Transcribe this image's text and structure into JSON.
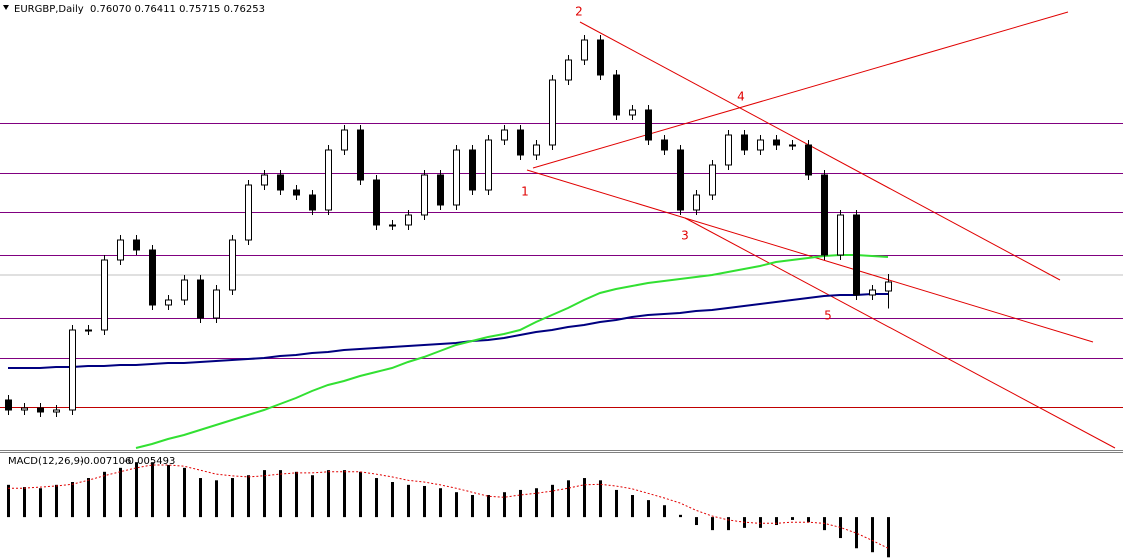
{
  "chart_data": {
    "type": "candlestick",
    "symbol": "EURGBP,Daily",
    "quote": "0.76070 0.76411 0.75715 0.76253",
    "ylim": [
      0.7289,
      0.8189
    ],
    "open": [
      0.7389,
      0.7369,
      0.7373,
      0.7365,
      0.7369,
      0.7529,
      0.7529,
      0.7669,
      0.7709,
      0.7689,
      0.7579,
      0.7589,
      0.7629,
      0.7553,
      0.7609,
      0.7709,
      0.7819,
      0.7839,
      0.7809,
      0.7799,
      0.7769,
      0.7889,
      0.7929,
      0.7829,
      0.7739,
      0.7739,
      0.7759,
      0.7839,
      0.7779,
      0.7889,
      0.7809,
      0.7909,
      0.7929,
      0.7879,
      0.7899,
      0.8029,
      0.8069,
      0.8109,
      0.8039,
      0.7959,
      0.7969,
      0.7909,
      0.7889,
      0.7769,
      0.7799,
      0.7859,
      0.7919,
      0.7889,
      0.7909,
      0.7899,
      0.7899,
      0.7839,
      0.7679,
      0.7759,
      0.7599,
      0.7607
    ],
    "high": [
      0.7399,
      0.7383,
      0.7383,
      0.7379,
      0.7539,
      0.7539,
      0.7679,
      0.7719,
      0.7719,
      0.7699,
      0.7599,
      0.7639,
      0.7639,
      0.7619,
      0.7719,
      0.7829,
      0.7849,
      0.7849,
      0.7819,
      0.7809,
      0.7899,
      0.7939,
      0.7939,
      0.7839,
      0.7749,
      0.7769,
      0.7849,
      0.7849,
      0.7899,
      0.7899,
      0.7919,
      0.7939,
      0.7939,
      0.7909,
      0.8039,
      0.8079,
      0.8119,
      0.8119,
      0.8049,
      0.7979,
      0.7979,
      0.7919,
      0.7899,
      0.7809,
      0.7869,
      0.7929,
      0.7929,
      0.7919,
      0.7919,
      0.7909,
      0.7909,
      0.7849,
      0.7769,
      0.7769,
      0.7619,
      0.7641
    ],
    "low": [
      0.7359,
      0.7359,
      0.7355,
      0.7355,
      0.7359,
      0.7519,
      0.7519,
      0.7659,
      0.7679,
      0.7569,
      0.7569,
      0.7579,
      0.7543,
      0.7543,
      0.7599,
      0.7699,
      0.7809,
      0.7799,
      0.7789,
      0.7759,
      0.7759,
      0.7879,
      0.7819,
      0.7729,
      0.7729,
      0.7729,
      0.7749,
      0.7769,
      0.7769,
      0.7799,
      0.7799,
      0.7899,
      0.7869,
      0.7869,
      0.7889,
      0.8019,
      0.8059,
      0.8029,
      0.7949,
      0.7949,
      0.7899,
      0.7879,
      0.7759,
      0.7759,
      0.7789,
      0.7849,
      0.7879,
      0.7879,
      0.7889,
      0.7889,
      0.7829,
      0.7669,
      0.7669,
      0.7589,
      0.7589,
      0.7572
    ],
    "close": [
      0.7369,
      0.7373,
      0.7365,
      0.7369,
      0.7529,
      0.7529,
      0.7669,
      0.7709,
      0.7689,
      0.7579,
      0.7589,
      0.7629,
      0.7553,
      0.7609,
      0.7709,
      0.7819,
      0.7839,
      0.7809,
      0.7799,
      0.7769,
      0.7889,
      0.7929,
      0.7829,
      0.7739,
      0.7739,
      0.7759,
      0.7839,
      0.7779,
      0.7889,
      0.7809,
      0.7909,
      0.7929,
      0.7879,
      0.7899,
      0.8029,
      0.8069,
      0.8109,
      0.8039,
      0.7959,
      0.7969,
      0.7909,
      0.7889,
      0.7769,
      0.7799,
      0.7859,
      0.7919,
      0.7889,
      0.7909,
      0.7899,
      0.7899,
      0.7839,
      0.7679,
      0.7759,
      0.7599,
      0.7609,
      0.7625
    ],
    "moving_averages": [
      {
        "color": "#000080",
        "values": [
          0.7453,
          0.7453,
          0.7453,
          0.7455,
          0.7455,
          0.7457,
          0.7457,
          0.7459,
          0.7459,
          0.7461,
          0.7463,
          0.7463,
          0.7465,
          0.7467,
          0.7469,
          0.7471,
          0.7473,
          0.7477,
          0.7479,
          0.7483,
          0.7485,
          0.7489,
          0.7491,
          0.7493,
          0.7495,
          0.7497,
          0.7499,
          0.7501,
          0.7503,
          0.7507,
          0.7509,
          0.7513,
          0.7519,
          0.7525,
          0.7529,
          0.7535,
          0.7539,
          0.7545,
          0.7549,
          0.7555,
          0.7559,
          0.7561,
          0.7563,
          0.7567,
          0.7569,
          0.7573,
          0.7577,
          0.7581,
          0.7585,
          0.7589,
          0.7593,
          0.7597,
          0.7599,
          0.7599,
          0.7601,
          0.7601
        ]
      },
      {
        "color": "#32e032",
        "values": [
          null,
          null,
          null,
          null,
          null,
          null,
          null,
          null,
          0.7293,
          0.7301,
          0.7311,
          0.7319,
          0.7329,
          0.7339,
          0.7349,
          0.7359,
          0.7369,
          0.7381,
          0.7393,
          0.7407,
          0.7419,
          0.7427,
          0.7437,
          0.7445,
          0.7453,
          0.7465,
          0.7475,
          0.7487,
          0.7499,
          0.7507,
          0.7515,
          0.7521,
          0.7529,
          0.7545,
          0.7559,
          0.7573,
          0.7589,
          0.7603,
          0.7611,
          0.7617,
          0.7623,
          0.7627,
          0.7631,
          0.7635,
          0.7639,
          0.7645,
          0.7651,
          0.7657,
          0.7665,
          0.7669,
          0.7673,
          0.7677,
          0.7679,
          0.7679,
          0.7677,
          0.7675
        ]
      }
    ],
    "levels": [
      {
        "value": 0.7943,
        "color": "#800080"
      },
      {
        "value": 0.7843,
        "color": "#800080"
      },
      {
        "value": 0.7765,
        "color": "#800080"
      },
      {
        "value": 0.7679,
        "color": "#800080"
      },
      {
        "value": 0.7553,
        "color": "#800080"
      },
      {
        "value": 0.7473,
        "color": "#800080"
      },
      {
        "value": 0.7375,
        "color": "#c00000"
      }
    ],
    "wave_labels": [
      "1",
      "2",
      "3",
      "4",
      "5"
    ],
    "macd": {
      "label": "MACD(12,26,9)",
      "main_value": "-0.007106",
      "signal_value": "-0.005493",
      "ylim": [
        -0.0074,
        0.0115
      ],
      "histogram": [
        0.0057,
        0.0053,
        0.0051,
        0.0057,
        0.0062,
        0.0069,
        0.008,
        0.0087,
        0.0097,
        0.0097,
        0.0092,
        0.0087,
        0.0069,
        0.0065,
        0.0069,
        0.0074,
        0.0083,
        0.0083,
        0.008,
        0.0074,
        0.0083,
        0.0083,
        0.008,
        0.0069,
        0.0062,
        0.0057,
        0.0055,
        0.0051,
        0.0044,
        0.0039,
        0.0039,
        0.0044,
        0.0048,
        0.0051,
        0.0057,
        0.0065,
        0.0069,
        0.0065,
        0.0048,
        0.0039,
        0.003,
        0.0021,
        0.0004,
        -0.0014,
        -0.0023,
        -0.0023,
        -0.0019,
        -0.0019,
        -0.0014,
        -0.0005,
        -0.0009,
        -0.0023,
        -0.0037,
        -0.0055,
        -0.0062,
        -0.0071
      ],
      "signal": [
        0.0051,
        0.0051,
        0.0053,
        0.0055,
        0.0058,
        0.0065,
        0.0073,
        0.008,
        0.0087,
        0.0092,
        0.0092,
        0.009,
        0.0083,
        0.0076,
        0.0073,
        0.0071,
        0.0073,
        0.0076,
        0.0078,
        0.0078,
        0.008,
        0.008,
        0.008,
        0.0076,
        0.0071,
        0.0065,
        0.0062,
        0.0057,
        0.0051,
        0.0044,
        0.0037,
        0.0035,
        0.0039,
        0.0042,
        0.0046,
        0.0051,
        0.0057,
        0.0058,
        0.0055,
        0.005,
        0.0042,
        0.0034,
        0.0025,
        0.0012,
        0.0002,
        -0.0005,
        -0.0009,
        -0.0011,
        -0.0011,
        -0.0009,
        -0.0009,
        -0.0011,
        -0.0018,
        -0.0028,
        -0.0041,
        -0.0055
      ],
      "signal_color": "#e00000"
    }
  }
}
